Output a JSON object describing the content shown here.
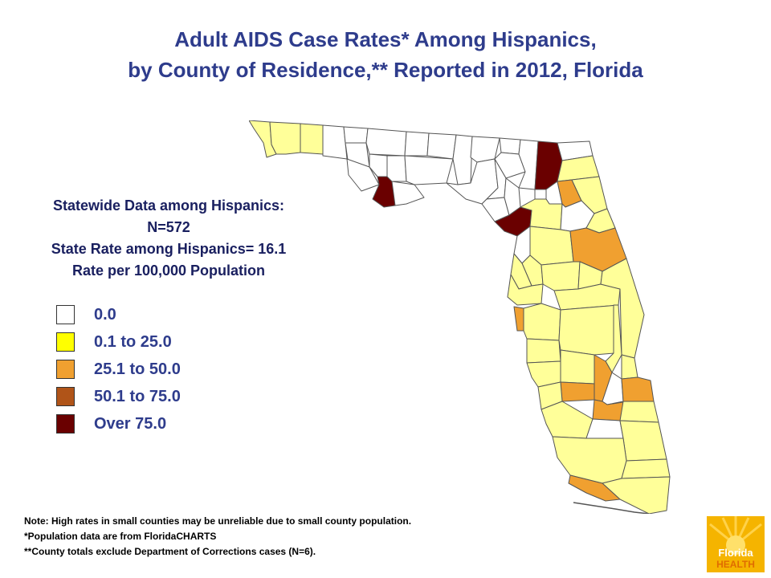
{
  "title": {
    "line1": "Adult AIDS Case Rates* Among Hispanics,",
    "line2": "by County of Residence,** Reported in 2012, Florida"
  },
  "statewide": {
    "heading": "Statewide Data among Hispanics:",
    "n": "N=572",
    "state_rate": "State Rate among Hispanics= 16.1",
    "rate_basis": "Rate per 100,000 Population"
  },
  "legend": [
    {
      "label": "0.0",
      "color": "#ffffff"
    },
    {
      "label": "0.1 to 25.0",
      "color": "#ffff00"
    },
    {
      "label": "25.1 to 50.0",
      "color": "#f0a030"
    },
    {
      "label": "50.1 to 75.0",
      "color": "#b05418"
    },
    {
      "label": "Over 75.0",
      "color": "#6a0000"
    }
  ],
  "notes": {
    "line1": "Note: High rates in small counties may be unreliable due to small county population.",
    "line2": "*Population data are from FloridaCHARTS",
    "line3": "**County totals exclude Department of Corrections cases (N=6)."
  },
  "map_colors": {
    "zero": "#ffffff",
    "low": "#ffff99",
    "mid": "#f0a030",
    "high": "#b05418",
    "over": "#6a0000",
    "border": "#555555"
  },
  "logo": {
    "line1": "Florida",
    "line2": "HEALTH",
    "colors": [
      "#f5b400",
      "#e06c00"
    ]
  }
}
